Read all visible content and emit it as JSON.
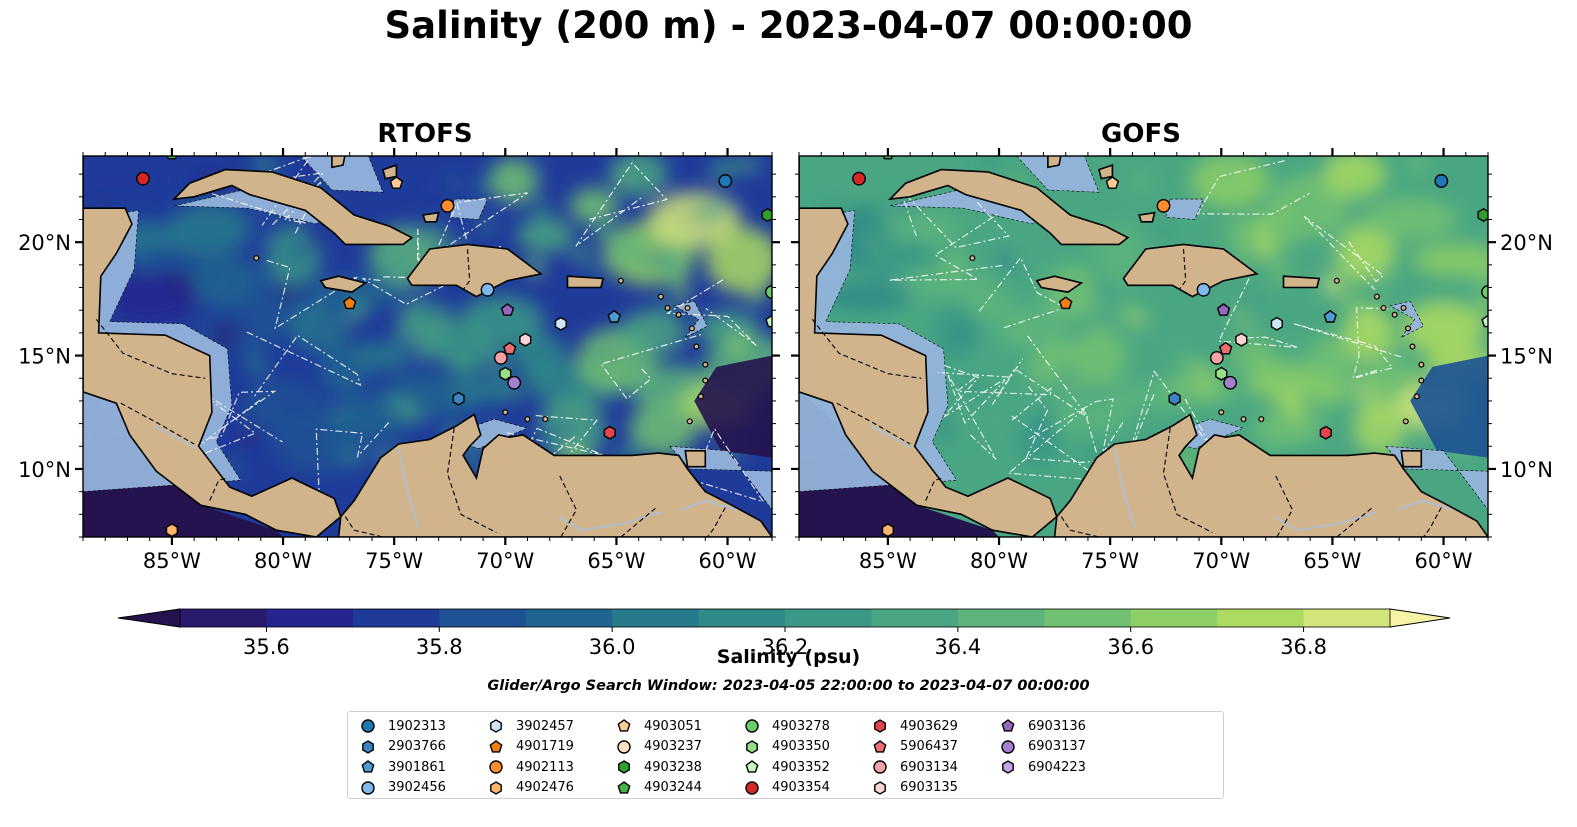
{
  "title": "Salinity (200 m) - 2023-04-07 00:00:00",
  "panels": [
    {
      "title": "RTOFS",
      "colormap_bias": 0.0
    },
    {
      "title": "GOFS",
      "colormap_bias": 0.55
    }
  ],
  "axes": {
    "lon_range": [
      -89,
      -58
    ],
    "lat_range": [
      7,
      23.8
    ],
    "lon_ticks": [
      {
        "value": -85,
        "label": "85°W"
      },
      {
        "value": -80,
        "label": "80°W"
      },
      {
        "value": -75,
        "label": "75°W"
      },
      {
        "value": -70,
        "label": "70°W"
      },
      {
        "value": -65,
        "label": "65°W"
      },
      {
        "value": -60,
        "label": "60°W"
      }
    ],
    "lat_ticks": [
      {
        "value": 20,
        "label": "20°N"
      },
      {
        "value": 15,
        "label": "15°N"
      },
      {
        "value": 10,
        "label": "10°N"
      }
    ]
  },
  "colorbar": {
    "label": "Salinity (psu)",
    "min": 35.5,
    "max": 36.9,
    "step": 0.1,
    "extend": "both",
    "ticks": [
      {
        "value": 35.6,
        "label": "35.6"
      },
      {
        "value": 35.8,
        "label": "35.8"
      },
      {
        "value": 36.0,
        "label": "36.0"
      },
      {
        "value": 36.2,
        "label": "36.2"
      },
      {
        "value": 36.4,
        "label": "36.4"
      },
      {
        "value": 36.6,
        "label": "36.6"
      },
      {
        "value": 36.8,
        "label": "36.8"
      }
    ],
    "colors": [
      "#2a1a6e",
      "#24238f",
      "#1f3b9a",
      "#1d5294",
      "#1e6590",
      "#277a8c",
      "#308a88",
      "#3b9886",
      "#4aa682",
      "#5cb47c",
      "#71c172",
      "#8dcf65",
      "#addb62",
      "#d1e57a"
    ],
    "under_color": "#25134f",
    "over_color": "#f6f2a6"
  },
  "colors": {
    "land": "#d1b48c",
    "shelf": "#94b4dc",
    "river": "#a8c0dc",
    "float_outline": "#000000"
  },
  "search_window": "Glider/Argo Search Window: 2023-04-05 22:00:00 to 2023-04-07 00:00:00",
  "legend": {
    "items": [
      {
        "id": "1902313",
        "marker": "circle",
        "color": "#1f77b4"
      },
      {
        "id": "2903766",
        "marker": "hexagon",
        "color": "#3c83c2"
      },
      {
        "id": "3901861",
        "marker": "pentagon",
        "color": "#4e9ad2"
      },
      {
        "id": "3902456",
        "marker": "circle",
        "color": "#7fb8ec"
      },
      {
        "id": "3902457",
        "marker": "hexagon",
        "color": "#cfe6f8"
      },
      {
        "id": "4901719",
        "marker": "pentagon",
        "color": "#f07f12"
      },
      {
        "id": "4902113",
        "marker": "circle",
        "color": "#fb8d2e"
      },
      {
        "id": "4902476",
        "marker": "hexagon",
        "color": "#fdb46c"
      },
      {
        "id": "4903051",
        "marker": "pentagon",
        "color": "#fdc995"
      },
      {
        "id": "4903237",
        "marker": "circle",
        "color": "#fde0c0"
      },
      {
        "id": "4903238",
        "marker": "hexagon",
        "color": "#2ca02c"
      },
      {
        "id": "4903244",
        "marker": "pentagon",
        "color": "#47b447"
      },
      {
        "id": "4903278",
        "marker": "circle",
        "color": "#6ccb6a"
      },
      {
        "id": "4903350",
        "marker": "hexagon",
        "color": "#98df8a"
      },
      {
        "id": "4903352",
        "marker": "pentagon",
        "color": "#c8f4bf"
      },
      {
        "id": "4903354",
        "marker": "circle",
        "color": "#d62728"
      },
      {
        "id": "4903629",
        "marker": "hexagon",
        "color": "#e0464b"
      },
      {
        "id": "5906437",
        "marker": "pentagon",
        "color": "#ec6e73"
      },
      {
        "id": "6903134",
        "marker": "circle",
        "color": "#f4a3a5"
      },
      {
        "id": "6903135",
        "marker": "hexagon",
        "color": "#fbd5d5"
      },
      {
        "id": "6903136",
        "marker": "pentagon",
        "color": "#9467bd"
      },
      {
        "id": "6903137",
        "marker": "circle",
        "color": "#a77fd0"
      },
      {
        "id": "6904223",
        "marker": "hexagon",
        "color": "#c5a5e3"
      }
    ]
  },
  "floats": [
    {
      "id": "4903354",
      "lon": -86.3,
      "lat": 22.8
    },
    {
      "id": "4903244",
      "lon": -85.0,
      "lat": 23.9
    },
    {
      "id": "1902313",
      "lon": -60.1,
      "lat": 22.7
    },
    {
      "id": "4903238",
      "lon": -58.2,
      "lat": 21.2
    },
    {
      "id": "4903051",
      "lon": -74.9,
      "lat": 22.6
    },
    {
      "id": "4902113",
      "lon": -72.6,
      "lat": 21.6
    },
    {
      "id": "4901719",
      "lon": -77.0,
      "lat": 17.3
    },
    {
      "id": "3902456",
      "lon": -70.8,
      "lat": 17.9
    },
    {
      "id": "6903136",
      "lon": -69.9,
      "lat": 17.0
    },
    {
      "id": "3902457",
      "lon": -67.5,
      "lat": 16.4
    },
    {
      "id": "3901861",
      "lon": -65.1,
      "lat": 16.7
    },
    {
      "id": "2903766",
      "lon": -72.1,
      "lat": 13.1
    },
    {
      "id": "6903135",
      "lon": -69.1,
      "lat": 15.7
    },
    {
      "id": "5906437",
      "lon": -69.8,
      "lat": 15.3
    },
    {
      "id": "6903134",
      "lon": -70.2,
      "lat": 14.9
    },
    {
      "id": "4903350",
      "lon": -70.0,
      "lat": 14.2
    },
    {
      "id": "6903137",
      "lon": -69.6,
      "lat": 13.8
    },
    {
      "id": "4903629",
      "lon": -65.3,
      "lat": 11.6
    },
    {
      "id": "4902476",
      "lon": -85.0,
      "lat": 7.3
    },
    {
      "id": "4903352",
      "lon": -58.0,
      "lat": 16.5
    },
    {
      "id": "4903278",
      "lon": -58.0,
      "lat": 17.8
    }
  ]
}
